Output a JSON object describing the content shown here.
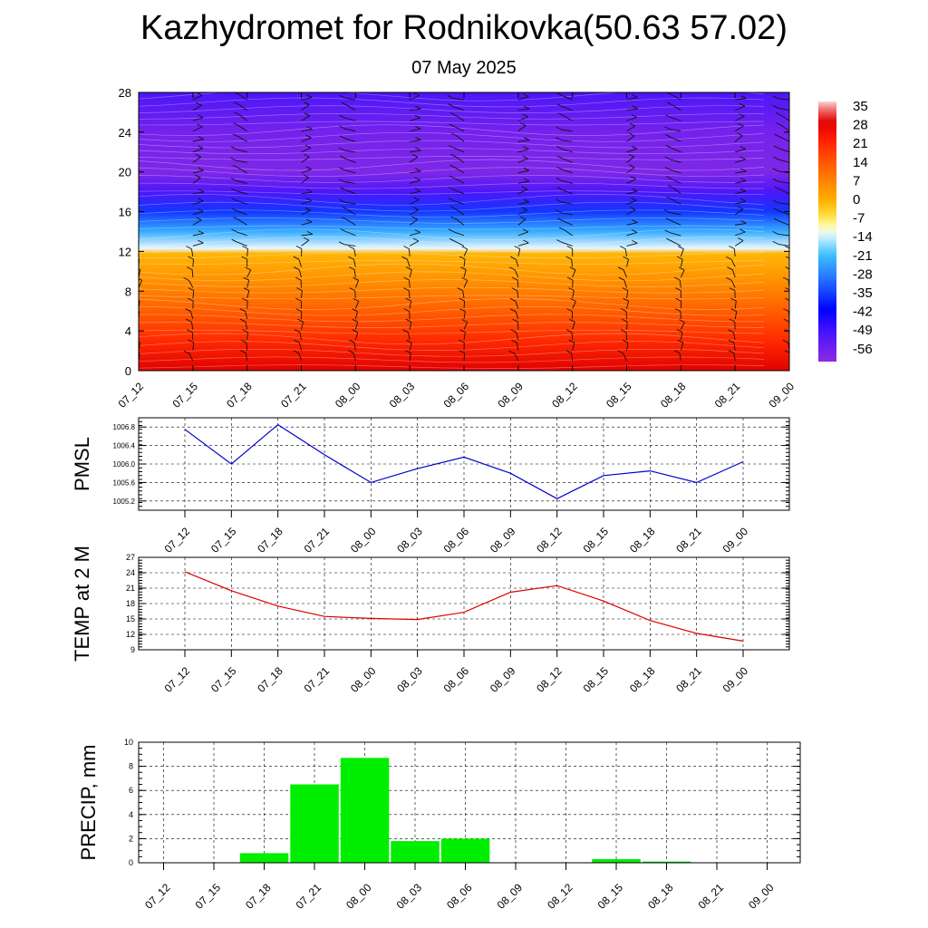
{
  "title": "Kazhydromet for Rodnikovka(50.63 57.02)",
  "subtitle": "07 May 2025",
  "colors": {
    "pmsl_line": "#0000cc",
    "temp_line": "#dd0000",
    "precip_bar": "#00ee00",
    "grid": "#000000"
  },
  "chart_data": [
    {
      "type": "heatmap",
      "title": "",
      "x_ticks": [
        "07_12",
        "07_15",
        "07_18",
        "07_21",
        "08_00",
        "08_03",
        "08_06",
        "08_09",
        "08_12",
        "08_15",
        "08_18",
        "08_21",
        "09_00"
      ],
      "y_ticks": [
        "0",
        "4",
        "8",
        "12",
        "16",
        "20",
        "24",
        "28"
      ],
      "ylim": [
        0,
        28
      ],
      "colorbar_labels": [
        "35",
        "28",
        "21",
        "14",
        "7",
        "0",
        "-7",
        "-14",
        "-21",
        "-28",
        "-35",
        "-42",
        "-49",
        "-56"
      ],
      "colorbar_range": [
        -60,
        38
      ],
      "temperature_profile": [
        {
          "level": 0,
          "value": 30
        },
        {
          "level": 3,
          "value": 22
        },
        {
          "level": 6,
          "value": 14
        },
        {
          "level": 9,
          "value": 6
        },
        {
          "level": 11.8,
          "value": 0
        },
        {
          "level": 12.3,
          "value": -12
        },
        {
          "level": 14,
          "value": -22
        },
        {
          "level": 16,
          "value": -35
        },
        {
          "level": 18,
          "value": -50
        },
        {
          "level": 20,
          "value": -58
        },
        {
          "level": 24,
          "value": -56
        },
        {
          "level": 28,
          "value": -50
        }
      ],
      "overlay": "wind barbs"
    },
    {
      "type": "line",
      "ylabel": "PMSL",
      "x": [
        "07_12",
        "07_15",
        "07_18",
        "07_21",
        "08_00",
        "08_03",
        "08_06",
        "08_09",
        "08_12",
        "08_15",
        "08_18",
        "08_21",
        "09_00"
      ],
      "y_ticks": [
        "1005.2",
        "1005.6",
        "1006.0",
        "1006.4",
        "1006.8"
      ],
      "ylim": [
        1005.0,
        1007.0
      ],
      "series": [
        {
          "values": [
            1006.75,
            1006.0,
            1006.85,
            1006.2,
            1005.6,
            1005.9,
            1006.15,
            1005.8,
            1005.25,
            1005.75,
            1005.85,
            1005.6,
            1006.05
          ]
        }
      ]
    },
    {
      "type": "line",
      "ylabel": "TEMP at 2 M",
      "x": [
        "07_12",
        "07_15",
        "07_18",
        "07_21",
        "08_00",
        "08_03",
        "08_06",
        "08_09",
        "08_12",
        "08_15",
        "08_18",
        "08_21",
        "09_00"
      ],
      "y_ticks": [
        "9",
        "12",
        "15",
        "18",
        "21",
        "24",
        "27"
      ],
      "ylim": [
        9,
        27
      ],
      "series": [
        {
          "values": [
            24.2,
            20.5,
            17.5,
            15.5,
            15.1,
            14.9,
            16.3,
            20.2,
            21.5,
            18.5,
            14.7,
            12.2,
            10.7
          ]
        }
      ]
    },
    {
      "type": "bar",
      "ylabel": "PRECIP, mm",
      "categories": [
        "07_12",
        "07_15",
        "07_18",
        "07_21",
        "08_00",
        "08_03",
        "08_06",
        "08_09",
        "08_12",
        "08_15",
        "08_18",
        "08_21",
        "09_00"
      ],
      "y_ticks": [
        "0",
        "2",
        "4",
        "6",
        "8",
        "10"
      ],
      "ylim": [
        0,
        10
      ],
      "values": [
        0,
        0,
        0.8,
        6.5,
        8.7,
        1.8,
        2.0,
        0,
        0,
        0.3,
        0.1,
        0,
        0
      ]
    }
  ]
}
